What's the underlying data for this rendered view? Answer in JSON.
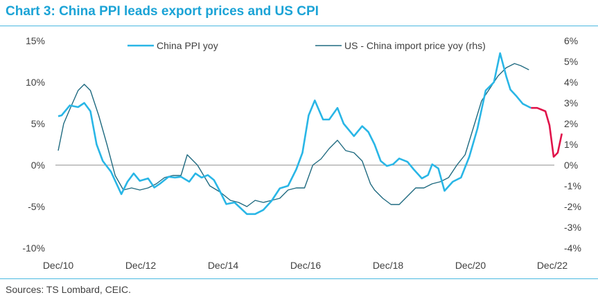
{
  "title": "Chart 3: China PPI leads export prices and US CPI",
  "source": "Sources: TS Lombard, CEIC.",
  "colors": {
    "accent": "#1ba3d6",
    "ppi": "#29b6e6",
    "import": "#1f6a80",
    "highlight": "#e0134a",
    "zero": "#8c8c8c"
  },
  "chart_data": {
    "type": "line",
    "title": "Chart 3: China PPI leads export prices and US CPI",
    "x_tick_labels": [
      "Dec/10",
      "Dec/12",
      "Dec/14",
      "Dec/16",
      "Dec/18",
      "Dec/20",
      "Dec/22"
    ],
    "x_tick_values": [
      2010.917,
      2012.917,
      2014.917,
      2016.917,
      2018.917,
      2020.917,
      2022.917
    ],
    "xlim": [
      2010.917,
      2022.917
    ],
    "ylim_left": [
      -10,
      15
    ],
    "ylim_right": [
      -4,
      6
    ],
    "y_left_ticks": [
      -10,
      -5,
      0,
      5,
      10,
      15
    ],
    "y_left_labels": [
      "-10%",
      "-5%",
      "0%",
      "5%",
      "10%",
      "15%"
    ],
    "y_right_ticks": [
      -4,
      -3,
      -2,
      -1,
      0,
      1,
      2,
      3,
      4,
      5,
      6
    ],
    "y_right_labels": [
      "-4%",
      "-3%",
      "-2%",
      "-1%",
      "0%",
      "1%",
      "2%",
      "3%",
      "4%",
      "5%",
      "6%"
    ],
    "legend": [
      "China PPI yoy",
      "US - China import price yoy (rhs)"
    ],
    "series": [
      {
        "name": "China PPI yoy",
        "axis": "left",
        "x": [
          2010.917,
          2011.0,
          2011.2,
          2011.4,
          2011.55,
          2011.7,
          2011.85,
          2012.0,
          2012.2,
          2012.45,
          2012.6,
          2012.75,
          2012.9,
          2013.1,
          2013.25,
          2013.4,
          2013.6,
          2013.75,
          2013.9,
          2014.1,
          2014.25,
          2014.4,
          2014.55,
          2014.7,
          2014.85,
          2015.0,
          2015.2,
          2015.5,
          2015.7,
          2015.9,
          2016.1,
          2016.3,
          2016.5,
          2016.7,
          2016.85,
          2017.0,
          2017.15,
          2017.35,
          2017.5,
          2017.7,
          2017.85,
          2018.1,
          2018.3,
          2018.45,
          2018.6,
          2018.75,
          2018.9,
          2019.05,
          2019.2,
          2019.4,
          2019.55,
          2019.75,
          2019.9,
          2020.0,
          2020.15,
          2020.3,
          2020.5,
          2020.7,
          2020.9,
          2021.1,
          2021.3,
          2021.5,
          2021.65,
          2021.8,
          2021.9,
          2022.05,
          2022.2,
          2022.4
        ],
        "y": [
          5.9,
          6.0,
          7.2,
          7.0,
          7.5,
          6.5,
          2.5,
          0.5,
          -0.8,
          -3.5,
          -2.0,
          -1.0,
          -1.9,
          -1.6,
          -2.7,
          -2.2,
          -1.4,
          -1.5,
          -1.4,
          -2.0,
          -1.0,
          -1.5,
          -1.2,
          -1.8,
          -3.2,
          -4.7,
          -4.5,
          -5.9,
          -5.9,
          -5.4,
          -4.3,
          -2.8,
          -2.5,
          -0.5,
          1.5,
          6.0,
          7.8,
          5.5,
          5.5,
          6.9,
          5.0,
          3.5,
          4.7,
          4.0,
          2.5,
          0.5,
          -0.1,
          0.1,
          0.8,
          0.4,
          -0.5,
          -1.6,
          -1.2,
          0.1,
          -0.4,
          -3.1,
          -2.0,
          -1.5,
          1.0,
          4.4,
          9.0,
          10.0,
          13.5,
          10.7,
          9.1,
          8.3,
          7.4,
          6.9
        ]
      },
      {
        "name": "US - China import price yoy (rhs)",
        "axis": "right",
        "x": [
          2010.917,
          2011.05,
          2011.2,
          2011.4,
          2011.55,
          2011.7,
          2011.9,
          2012.1,
          2012.3,
          2012.5,
          2012.7,
          2012.9,
          2013.1,
          2013.3,
          2013.5,
          2013.7,
          2013.9,
          2014.05,
          2014.3,
          2014.6,
          2014.85,
          2015.1,
          2015.3,
          2015.5,
          2015.7,
          2015.9,
          2016.1,
          2016.3,
          2016.5,
          2016.7,
          2016.9,
          2017.1,
          2017.3,
          2017.5,
          2017.7,
          2017.9,
          2018.1,
          2018.3,
          2018.5,
          2018.6,
          2018.8,
          2019.0,
          2019.2,
          2019.4,
          2019.6,
          2019.8,
          2020.0,
          2020.2,
          2020.4,
          2020.6,
          2020.8,
          2021.0,
          2021.2,
          2021.4,
          2021.6,
          2021.8,
          2022.0,
          2022.15,
          2022.35
        ],
        "y": [
          0.7,
          2.0,
          2.7,
          3.6,
          3.9,
          3.6,
          2.4,
          1.0,
          -0.5,
          -1.2,
          -1.1,
          -1.2,
          -1.1,
          -0.9,
          -0.6,
          -0.5,
          -0.5,
          0.5,
          0.0,
          -1.0,
          -1.3,
          -1.7,
          -1.8,
          -2.0,
          -1.7,
          -1.8,
          -1.7,
          -1.6,
          -1.2,
          -1.1,
          -1.1,
          0.0,
          0.3,
          0.8,
          1.2,
          0.7,
          0.6,
          0.2,
          -0.9,
          -1.2,
          -1.6,
          -1.9,
          -1.9,
          -1.5,
          -1.1,
          -1.1,
          -0.9,
          -0.8,
          -0.6,
          0.0,
          0.5,
          1.8,
          3.1,
          3.7,
          4.3,
          4.7,
          4.9,
          4.8,
          4.6
        ]
      },
      {
        "name": "China PPI yoy (latest)",
        "axis": "left",
        "x": [
          2022.4,
          2022.55,
          2022.75,
          2022.85,
          2022.95,
          2023.05,
          2023.15
        ],
        "y": [
          6.9,
          6.9,
          6.5,
          4.8,
          1.0,
          1.5,
          3.8
        ]
      }
    ]
  }
}
